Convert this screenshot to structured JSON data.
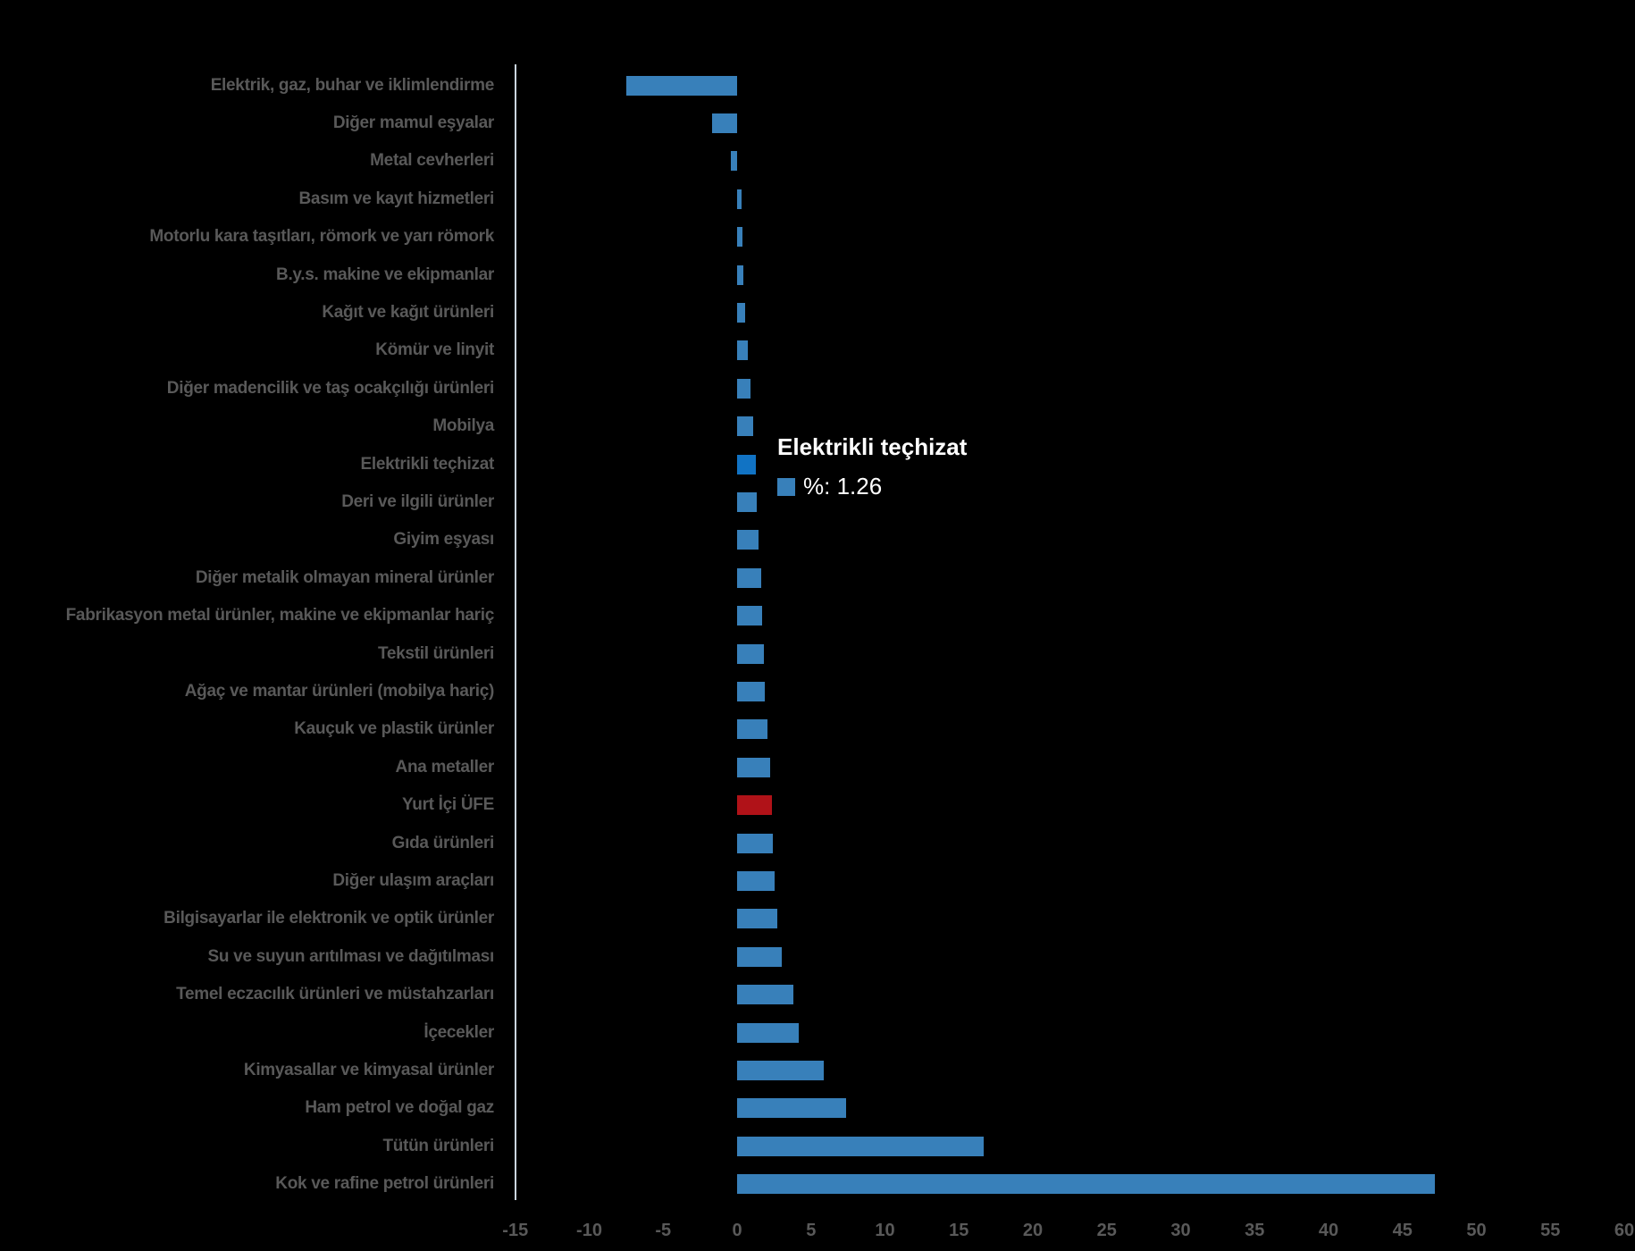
{
  "chart_data": {
    "type": "bar",
    "orientation": "horizontal",
    "title": "",
    "xlabel": "",
    "ylabel": "",
    "grid": false,
    "axis_range": [
      -15,
      60
    ],
    "x_ticks": [
      -15,
      -10,
      -5,
      0,
      5,
      10,
      15,
      20,
      25,
      30,
      35,
      40,
      45,
      50,
      55,
      60
    ],
    "x_tick_labels": [
      "-15",
      "-10",
      "-5",
      "0",
      "5",
      "10",
      "15",
      "20",
      "25",
      "30",
      "35",
      "40",
      "45",
      "50",
      "55",
      "60"
    ],
    "unit": "%",
    "categories": [
      "Elektrik, gaz, buhar ve iklimlendirme",
      "Diğer mamul eşyalar",
      "Metal cevherleri",
      "Basım ve kayıt hizmetleri",
      "Motorlu kara taşıtları, römork ve yarı römork",
      "B.y.s. makine ve ekipmanlar",
      "Kağıt ve kağıt ürünleri",
      "Kömür ve linyit",
      "Diğer madencilik ve taş ocakçılığı ürünleri",
      "Mobilya",
      "Elektrikli teçhizat",
      "Deri ve ilgili ürünler",
      "Giyim eşyası",
      "Diğer metalik olmayan mineral ürünler",
      "Fabrikasyon metal ürünler, makine ve ekipmanlar hariç",
      "Tekstil ürünleri",
      "Ağaç ve mantar ürünleri (mobilya hariç)",
      "Kauçuk ve plastik ürünler",
      "Ana metaller",
      "Yurt İçi ÜFE",
      "Gıda ürünleri",
      "Diğer ulaşım araçları",
      "Bilgisayarlar ile elektronik ve optik ürünler",
      "Su ve suyun arıtılması ve dağıtılması",
      "Temel eczacılık ürünleri ve müstahzarları",
      "İçecekler",
      "Kimyasallar ve kimyasal ürünler",
      "Ham petrol ve doğal gaz",
      "Tütün ürünleri",
      "Kok ve rafine petrol ürünleri"
    ],
    "values": [
      -7.52,
      -1.72,
      -0.41,
      0.33,
      0.38,
      0.45,
      0.52,
      0.74,
      0.88,
      1.08,
      1.26,
      1.32,
      1.45,
      1.65,
      1.72,
      1.8,
      1.9,
      2.05,
      2.22,
      2.36,
      2.4,
      2.52,
      2.74,
      3.0,
      3.8,
      4.18,
      5.85,
      7.35,
      16.7,
      47.2
    ],
    "highlighted_index": 10,
    "red_index": 19,
    "legend_position": "none"
  },
  "tooltip": {
    "title": "Elektrikli teçhizat",
    "value_label": "%: 1.26"
  },
  "colors": {
    "background": "#000000",
    "bar_blue": "#3880BA",
    "bar_blue_hover": "#1173C4",
    "bar_red": "#B01218",
    "label_gray": "#595959",
    "axis_line": "#CBD6DF",
    "tooltip_text": "#FFFFFF"
  }
}
